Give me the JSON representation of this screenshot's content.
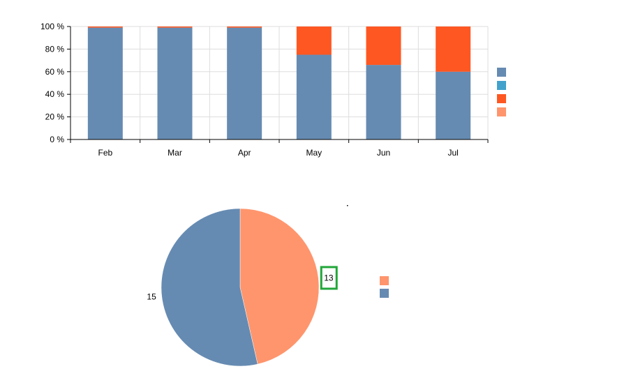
{
  "chart_data": [
    {
      "type": "bar",
      "stacked": "percent",
      "categories": [
        "Feb",
        "Mar",
        "Apr",
        "May",
        "Jun",
        "Jul"
      ],
      "series": [
        {
          "color": "#668BB2",
          "values": [
            99,
            99,
            99,
            75,
            66,
            60
          ]
        },
        {
          "color": "#42A2CC",
          "values": [
            0,
            0,
            0,
            0,
            0,
            0
          ]
        },
        {
          "color": "#FF5722",
          "values": [
            1,
            1,
            1,
            25,
            34,
            40
          ]
        },
        {
          "color": "#FF956D",
          "values": [
            0,
            0,
            0,
            0,
            0,
            0
          ]
        }
      ],
      "yticks": [
        "0 %",
        "20 %",
        "40 %",
        "60 %",
        "80 %",
        "100 %"
      ],
      "ylim": [
        0,
        100
      ],
      "grid": true,
      "legend_position": "right"
    },
    {
      "type": "pie",
      "slices": [
        {
          "value": 13,
          "label": "13",
          "color": "#FF956D"
        },
        {
          "value": 15,
          "label": "15",
          "color": "#668BB2"
        }
      ],
      "highlighted_label": "13",
      "highlight_color": "#22A63A",
      "legend_position": "right"
    }
  ]
}
